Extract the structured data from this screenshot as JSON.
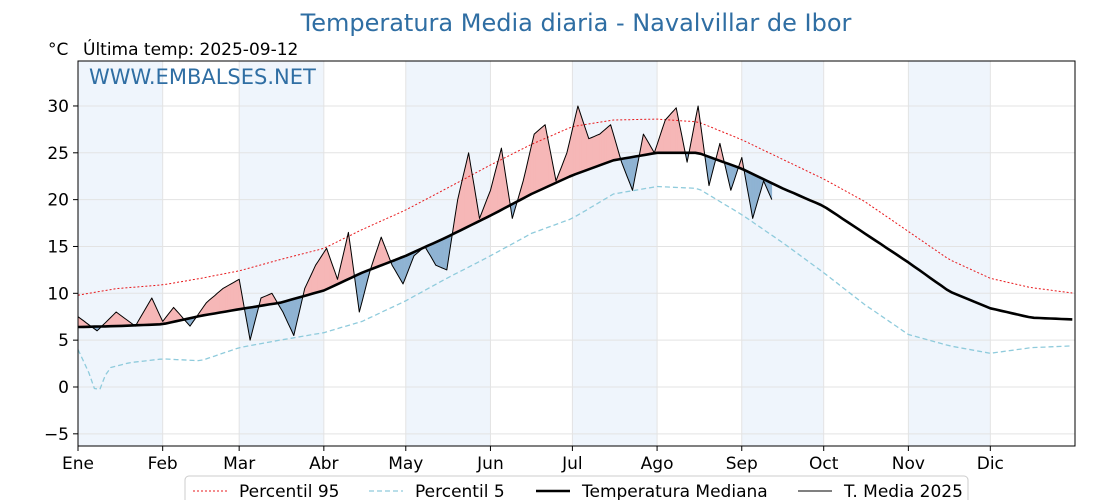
{
  "chart_data": {
    "type": "line",
    "title": "Temperatura Media diaria - Navalvillar de Ibor",
    "unit_label": "°C",
    "last_temp_label": "Última temp: 2025-09-12",
    "watermark": "WWW.EMBALSES.NET",
    "x_ticks": [
      "Ene",
      "Feb",
      "Mar",
      "Abr",
      "May",
      "Jun",
      "Jul",
      "Ago",
      "Sep",
      "Oct",
      "Nov",
      "Dic"
    ],
    "month_start_days": [
      1,
      32,
      60,
      91,
      121,
      152,
      182,
      213,
      244,
      274,
      305,
      335
    ],
    "xlim": [
      1,
      366
    ],
    "ylim": [
      -6.3,
      34.8
    ],
    "y_ticks": [
      -5,
      0,
      5,
      10,
      15,
      20,
      25,
      30
    ],
    "grid": true,
    "shaded_months": [
      1,
      3,
      5,
      7,
      9,
      11
    ],
    "legend_position": "bottom",
    "series": [
      {
        "name": "Percentil 95",
        "style": "dotted",
        "color": "#e8191c",
        "x": [
          1,
          15,
          32,
          46,
          60,
          75,
          91,
          105,
          121,
          136,
          152,
          167,
          182,
          197,
          213,
          228,
          244,
          259,
          274,
          289,
          305,
          320,
          335,
          350,
          366
        ],
        "values": [
          9.8,
          10.5,
          10.9,
          11.6,
          12.4,
          13.6,
          14.8,
          16.8,
          18.9,
          21.2,
          23.7,
          25.9,
          27.8,
          28.5,
          28.6,
          28.3,
          26.4,
          24.3,
          22.2,
          19.8,
          16.6,
          13.6,
          11.6,
          10.6,
          10.0
        ]
      },
      {
        "name": "Percentil 5",
        "style": "dashed",
        "color": "#8fcbdc",
        "x": [
          1,
          5,
          8,
          12,
          20,
          32,
          46,
          60,
          75,
          91,
          105,
          121,
          136,
          152,
          167,
          182,
          197,
          213,
          228,
          244,
          259,
          274,
          289,
          305,
          320,
          335,
          350,
          366
        ],
        "values": [
          4.0,
          1.5,
          -1.0,
          2.0,
          2.6,
          3.0,
          2.8,
          4.2,
          5.0,
          5.8,
          7.0,
          9.2,
          11.6,
          14.0,
          16.4,
          18.0,
          20.6,
          21.4,
          21.2,
          18.4,
          15.4,
          12.2,
          8.8,
          5.6,
          4.4,
          3.6,
          4.2,
          4.4
        ]
      },
      {
        "name": "Temperatura Mediana",
        "style": "solid-thick",
        "color": "#000000",
        "x": [
          1,
          15,
          32,
          46,
          60,
          75,
          91,
          105,
          121,
          136,
          152,
          167,
          182,
          197,
          213,
          228,
          244,
          259,
          274,
          289,
          305,
          320,
          335,
          350,
          366
        ],
        "values": [
          6.4,
          6.5,
          6.7,
          7.6,
          8.3,
          9.0,
          10.3,
          12.2,
          14.0,
          16.0,
          18.3,
          20.6,
          22.6,
          24.2,
          25.0,
          25.0,
          23.3,
          21.2,
          19.3,
          16.4,
          13.3,
          10.2,
          8.4,
          7.4,
          7.2
        ]
      },
      {
        "name": "T. Media 2025",
        "style": "solid-thin",
        "color": "#000000",
        "x": [
          1,
          8,
          15,
          22,
          28,
          32,
          36,
          42,
          48,
          54,
          60,
          64,
          68,
          72,
          76,
          80,
          84,
          88,
          92,
          96,
          100,
          104,
          108,
          112,
          116,
          120,
          124,
          128,
          132,
          136,
          140,
          144,
          148,
          152,
          156,
          160,
          164,
          168,
          172,
          176,
          180,
          184,
          188,
          192,
          196,
          200,
          204,
          208,
          212,
          216,
          220,
          224,
          228,
          232,
          236,
          240,
          244,
          248,
          252,
          255
        ],
        "values": [
          7.5,
          6.0,
          8.0,
          6.5,
          9.5,
          7.0,
          8.5,
          6.5,
          9.0,
          10.5,
          11.5,
          5.0,
          9.5,
          10.0,
          8.0,
          5.5,
          10.5,
          13.0,
          14.8,
          11.5,
          16.5,
          8.0,
          12.5,
          16.0,
          13.0,
          11.0,
          14.0,
          15.0,
          13.0,
          12.5,
          20.0,
          25.0,
          18.0,
          21.0,
          25.5,
          18.0,
          22.0,
          27.0,
          28.0,
          22.0,
          25.0,
          30.0,
          26.5,
          27.0,
          28.0,
          24.0,
          21.0,
          27.0,
          25.0,
          28.5,
          29.8,
          24.0,
          30.0,
          21.5,
          26.0,
          21.0,
          24.5,
          18.0,
          22.0,
          20.0
        ]
      }
    ]
  }
}
